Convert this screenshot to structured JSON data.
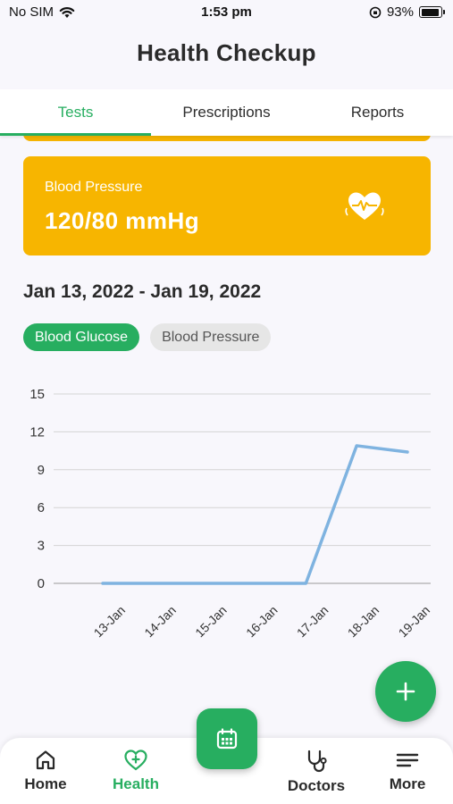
{
  "status_bar": {
    "carrier": "No SIM",
    "time": "1:53 pm",
    "battery": "93%",
    "battery_level": 0.93
  },
  "header": {
    "title": "Health Checkup"
  },
  "tabs": [
    {
      "label": "Tests",
      "active": true
    },
    {
      "label": "Prescriptions",
      "active": false
    },
    {
      "label": "Reports",
      "active": false
    }
  ],
  "vitals_card": {
    "label": "Blood Pressure",
    "value": "120/80 mmHg",
    "icon": "heart-pulse-icon",
    "color": "#f7b500"
  },
  "date_range": "Jan 13, 2022 - Jan 19, 2022",
  "chips": [
    {
      "label": "Blood Glucose",
      "active": true
    },
    {
      "label": "Blood Pressure",
      "active": false
    }
  ],
  "chart_data": {
    "type": "line",
    "x": [
      "13-Jan",
      "14-Jan",
      "15-Jan",
      "16-Jan",
      "17-Jan",
      "18-Jan",
      "19-Jan"
    ],
    "series": [
      {
        "values": [
          0,
          0,
          0,
          0,
          0,
          10.9,
          10.4
        ],
        "color": "#7fb3e0"
      }
    ],
    "yticks": [
      "0",
      "3",
      "6",
      "9",
      "12",
      "15"
    ],
    "ylim": [
      0,
      15
    ],
    "grid": true
  },
  "fab": {
    "icon": "plus-icon"
  },
  "bottom_nav": {
    "items": [
      {
        "label": "Home",
        "icon": "home-icon",
        "active": false
      },
      {
        "label": "Health",
        "icon": "heart-plus-icon",
        "active": true
      },
      {
        "label": "Doctors",
        "icon": "stethoscope-icon",
        "active": false
      },
      {
        "label": "More",
        "icon": "menu-icon",
        "active": false
      }
    ],
    "center_icon": "calendar-icon"
  },
  "colors": {
    "accent": "#27ae60",
    "card": "#f7b500",
    "line": "#7fb3e0"
  }
}
